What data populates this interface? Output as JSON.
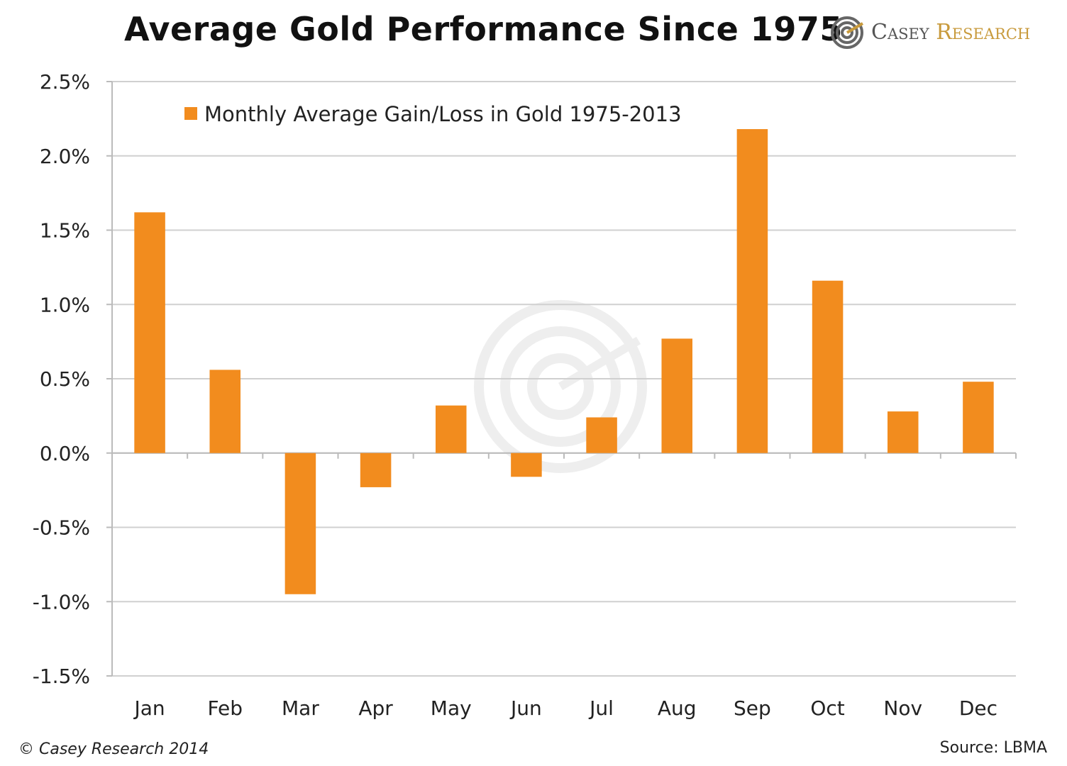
{
  "header": {
    "title": "Average Gold Performance Since 1975",
    "brand_word1": "Casey",
    "brand_word2": "Research",
    "brand_color": "#c89a3c"
  },
  "footer": {
    "copyright": "© Casey Research 2014",
    "source": "Source: LBMA"
  },
  "chart_data": {
    "type": "bar",
    "title": "Average Gold Performance Since 1975",
    "xlabel": "",
    "ylabel": "",
    "categories": [
      "Jan",
      "Feb",
      "Mar",
      "Apr",
      "May",
      "Jun",
      "Jul",
      "Aug",
      "Sep",
      "Oct",
      "Nov",
      "Dec"
    ],
    "series": [
      {
        "name": "Monthly Average Gain/Loss in Gold 1975-2013",
        "color": "#f28c1e",
        "values": [
          1.62,
          0.56,
          -0.95,
          -0.23,
          0.32,
          -0.16,
          0.24,
          0.77,
          2.18,
          1.16,
          0.28,
          0.48
        ]
      }
    ],
    "ylim": [
      -1.5,
      2.5
    ],
    "yticks": [
      "2.5%",
      "2.0%",
      "1.5%",
      "1.0%",
      "0.5%",
      "0.0%",
      "-0.5%",
      "-1.0%",
      "-1.5%"
    ],
    "ytick_values": [
      2.5,
      2.0,
      1.5,
      1.0,
      0.5,
      0.0,
      -0.5,
      -1.0,
      -1.5
    ],
    "grid": true,
    "legend_position": "top-left"
  }
}
